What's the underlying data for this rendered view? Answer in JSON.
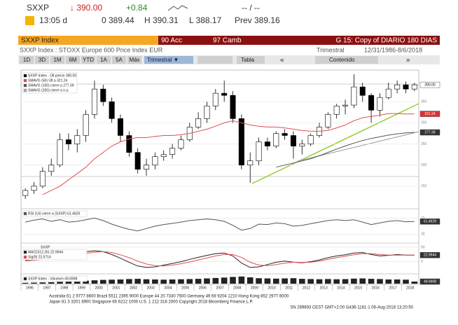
{
  "header": {
    "ticker": "SXXP",
    "price": "↓ 390.00",
    "change": "+0.84",
    "range": "-- / --",
    "time": "13:05 d",
    "open": "0 389.44",
    "high": "H 390.31",
    "low": "L 388.17",
    "prev": "Prev 389.16",
    "bar_security": "SXXP Index",
    "bar_actions": "90 Acc",
    "bar_change": "97 Camb",
    "bar_page": "G 15: Copy of DIARIO 180 DIAS",
    "subtitle": "SXXP Index : STOXX Europe 600 Price Index EUR",
    "period": "Trimestral",
    "dates": "12/31/1986-8/6/2018",
    "buttons": [
      "1D",
      "3D",
      "1M",
      "6M",
      "YTD",
      "1A",
      "5A",
      "Máx"
    ],
    "period_button": "Trimestral ▼",
    "table_button": "Tabla",
    "content_button": "Contenido"
  },
  "footer": [
    "Australia 61 2 9777 8600 Brazil 5511 2395 9000 Europe 44 20 7330 7500 Germany 49 69 9204 1210 Hong Kong 852 2977 6000",
    "Japan 81 3 3201 8900        Singapore 65 6212 1000        U.S. 1 212 318 2000        Copyright 2018 Bloomberg Finance L.P.",
    "SN 269893 CEST GMT+2:00 G436-1181-1 06-Aug-2018 13:20:50"
  ],
  "chart_data": [
    {
      "type": "candlestick",
      "name": "SXXP Index - Últ precio 390.00",
      "color_up": "#ffffff",
      "color_down": "#000000",
      "x": [
        1996.25,
        1996.75,
        1997.25,
        1997.75,
        1998.25,
        1998.75,
        1999.25,
        1999.75,
        2000.25,
        2000.75,
        2001.25,
        2001.75,
        2002.25,
        2002.75,
        2003.25,
        2003.75,
        2004.25,
        2004.75,
        2005.25,
        2005.75,
        2006.25,
        2006.75,
        2007.25,
        2007.75,
        2008.25,
        2008.75,
        2009.25,
        2009.75,
        2010.25,
        2010.75,
        2011.25,
        2011.75,
        2012.25,
        2012.75,
        2013.25,
        2013.75,
        2014.25,
        2014.75,
        2015.25,
        2015.75,
        2016.25,
        2016.75,
        2017.25,
        2017.75,
        2018.25,
        2018.75
      ],
      "open": [
        128,
        140,
        150,
        185,
        200,
        260,
        250,
        270,
        320,
        380,
        350,
        310,
        270,
        230,
        190,
        200,
        220,
        225,
        240,
        260,
        290,
        310,
        340,
        370,
        365,
        310,
        200,
        210,
        255,
        245,
        275,
        270,
        245,
        250,
        270,
        290,
        320,
        340,
        342,
        385,
        365,
        330,
        360,
        380,
        390,
        380
      ],
      "high": [
        145,
        160,
        195,
        215,
        275,
        275,
        285,
        330,
        400,
        390,
        360,
        320,
        280,
        240,
        215,
        230,
        235,
        250,
        270,
        300,
        325,
        350,
        380,
        400,
        375,
        320,
        230,
        265,
        265,
        280,
        285,
        280,
        260,
        275,
        300,
        325,
        345,
        355,
        415,
        395,
        370,
        370,
        395,
        400,
        398,
        395
      ],
      "low": [
        120,
        132,
        145,
        175,
        195,
        235,
        230,
        255,
        310,
        340,
        300,
        255,
        220,
        180,
        175,
        190,
        210,
        215,
        235,
        255,
        285,
        300,
        330,
        350,
        300,
        190,
        158,
        200,
        235,
        240,
        260,
        215,
        225,
        245,
        265,
        285,
        310,
        320,
        335,
        350,
        300,
        315,
        355,
        370,
        370,
        375
      ],
      "close": [
        140,
        150,
        185,
        200,
        260,
        250,
        270,
        320,
        380,
        350,
        310,
        270,
        230,
        190,
        200,
        220,
        225,
        240,
        260,
        290,
        310,
        340,
        370,
        365,
        310,
        200,
        210,
        255,
        245,
        275,
        270,
        245,
        250,
        270,
        290,
        320,
        340,
        342,
        385,
        365,
        330,
        360,
        380,
        390,
        380,
        390
      ],
      "series": [
        {
          "name": "SMAVG (50) Últ a 321.24",
          "color": "#e05050",
          "values": [
            null,
            null,
            130,
            140,
            150,
            165,
            180,
            195,
            215,
            230,
            245,
            255,
            262,
            265,
            265,
            268,
            270,
            270,
            272,
            275,
            280,
            285,
            292,
            300,
            305,
            300,
            295,
            292,
            290,
            290,
            288,
            285,
            282,
            280,
            280,
            282,
            288,
            295,
            305,
            312,
            315,
            318,
            322,
            322,
            321,
            321.24
          ]
        },
        {
          "name": "SMAVG (100) cierre a 277.39",
          "color": "#555555",
          "values": [
            null,
            null,
            null,
            null,
            null,
            null,
            null,
            null,
            null,
            null,
            null,
            null,
            null,
            null,
            null,
            null,
            null,
            null,
            null,
            null,
            null,
            null,
            null,
            null,
            null,
            null,
            null,
            null,
            null,
            195,
            200,
            205,
            210,
            215,
            222,
            230,
            238,
            245,
            252,
            258,
            263,
            267,
            271,
            274,
            276,
            277.39
          ]
        }
      ],
      "legend_extra": "SMAVG (200) cierre a n.a.",
      "ylim": [
        100,
        420
      ],
      "yticks": [
        150,
        200,
        250,
        300,
        350
      ],
      "tags": [
        {
          "value": 390,
          "label": "390.00",
          "color": "#ffffff"
        },
        {
          "value": 321.24,
          "label": "321.24",
          "color": "#e03030"
        },
        {
          "value": 277.39,
          "label": "277.39",
          "color": "#333333"
        }
      ]
    },
    {
      "type": "line",
      "series": [
        {
          "name": "RSI (14) cierre a (SXXP) 61.4629",
          "color": "#555555",
          "values": [
            60,
            65,
            68,
            62,
            66,
            60,
            62,
            66,
            70,
            64,
            55,
            48,
            42,
            38,
            44,
            50,
            54,
            57,
            60,
            64,
            66,
            68,
            66,
            62,
            52,
            40,
            44,
            55,
            54,
            58,
            56,
            50,
            52,
            56,
            60,
            64,
            66,
            64,
            66,
            60,
            54,
            58,
            62,
            64,
            61,
            61.4629
          ]
        }
      ],
      "ylim": [
        20,
        90
      ],
      "yticks": [
        30,
        70
      ],
      "tags": [
        {
          "value": 61.4629,
          "label": "61.4629",
          "color": "#333333"
        }
      ]
    },
    {
      "type": "line",
      "title": "SXXP",
      "series": [
        {
          "name": "MACD(12,26) 22.9944",
          "color": "#222222",
          "values": [
            5,
            8,
            12,
            15,
            22,
            28,
            32,
            35,
            38,
            35,
            25,
            12,
            -2,
            -15,
            -20,
            -18,
            -12,
            -6,
            0,
            8,
            15,
            22,
            28,
            30,
            20,
            -5,
            -20,
            -18,
            -10,
            -2,
            2,
            -2,
            -4,
            0,
            6,
            14,
            20,
            24,
            30,
            32,
            25,
            20,
            22,
            25,
            23,
            22.9944
          ]
        },
        {
          "name": "Sig(9) 22.5714",
          "color": "#e05050",
          "values": [
            3,
            5,
            8,
            11,
            15,
            20,
            25,
            29,
            33,
            35,
            32,
            24,
            14,
            2,
            -8,
            -14,
            -15,
            -12,
            -7,
            -1,
            6,
            13,
            20,
            25,
            25,
            15,
            -2,
            -12,
            -14,
            -10,
            -5,
            -2,
            -3,
            -2,
            2,
            8,
            14,
            19,
            24,
            28,
            28,
            25,
            23,
            23,
            23,
            22.5714
          ]
        }
      ],
      "ylim": [
        -40,
        60
      ],
      "yticks": [
        0,
        50
      ],
      "tags": [
        {
          "value": 22.9944,
          "label": "22.9944",
          "color": "#333333"
        }
      ]
    },
    {
      "type": "bar",
      "series": [
        {
          "name": "SXXP Index - Volumen 49.6908",
          "color": "#222222",
          "values": [
            20,
            25,
            30,
            35,
            45,
            55,
            60,
            70,
            80,
            90,
            95,
            100,
            110,
            115,
            105,
            100,
            95,
            100,
            105,
            110,
            115,
            125,
            135,
            145,
            160,
            170,
            150,
            130,
            125,
            120,
            125,
            130,
            115,
            110,
            105,
            110,
            105,
            108,
            120,
            125,
            115,
            110,
            100,
            100,
            95,
            49.6908
          ]
        }
      ],
      "ylim": [
        0,
        200
      ],
      "tags": [
        {
          "value": 49.6908,
          "label": "49.6908",
          "color": "#333333"
        }
      ],
      "xlim": [
        1996,
        2019
      ],
      "xticks": [
        1996,
        1997,
        1998,
        1999,
        2000,
        2001,
        2002,
        2003,
        2004,
        2005,
        2006,
        2007,
        2008,
        2009,
        2010,
        2011,
        2012,
        2013,
        2014,
        2015,
        2016,
        2017,
        2018
      ]
    }
  ]
}
